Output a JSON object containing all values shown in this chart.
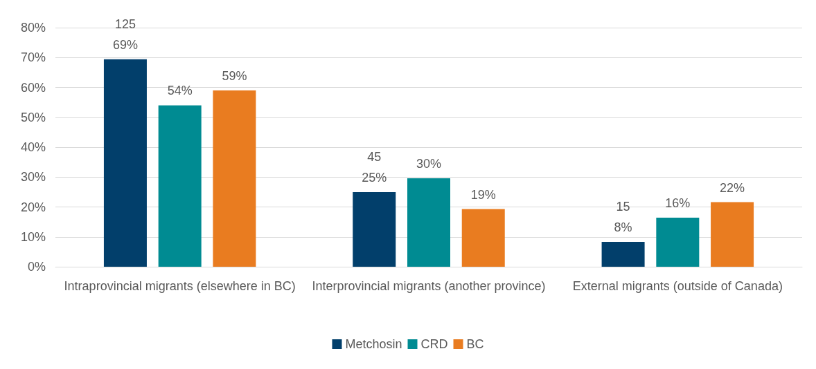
{
  "chart_data": {
    "type": "bar",
    "categories": [
      "Intraprovincial migrants (elsewhere in BC)",
      "Interprovincial migrants (another province)",
      "External migrants (outside of Canada)"
    ],
    "series": [
      {
        "name": "Metchosin",
        "color": "#023f6b",
        "values": [
          69.4,
          25,
          8.3
        ],
        "value_labels": [
          "125\n69%",
          "45\n25%",
          "15\n8%"
        ]
      },
      {
        "name": "CRD",
        "color": "#008b92",
        "values": [
          54,
          29.6,
          16.4
        ],
        "value_labels": [
          "54%",
          "30%",
          "16%"
        ]
      },
      {
        "name": "BC",
        "color": "#e97c20",
        "values": [
          59,
          19.3,
          21.6
        ],
        "value_labels": [
          "59%",
          "19%",
          "22%"
        ]
      }
    ],
    "ylim": [
      0,
      80
    ],
    "yticks": [
      {
        "value": 0,
        "label": "0%"
      },
      {
        "value": 10,
        "label": "10%"
      },
      {
        "value": 20,
        "label": "20%"
      },
      {
        "value": 30,
        "label": "30%"
      },
      {
        "value": 40,
        "label": "40%"
      },
      {
        "value": 50,
        "label": "50%"
      },
      {
        "value": 60,
        "label": "60%"
      },
      {
        "value": 70,
        "label": "70%"
      },
      {
        "value": 80,
        "label": "80%"
      }
    ],
    "grid": "y",
    "legend": "bottom"
  }
}
